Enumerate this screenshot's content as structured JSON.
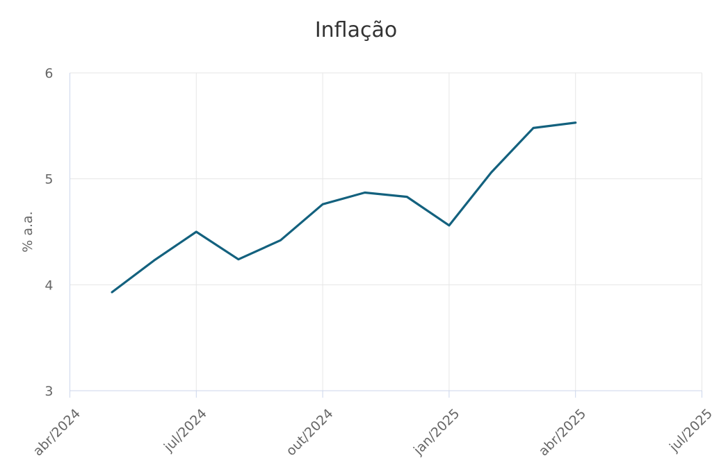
{
  "page": {
    "title": "Inflação"
  },
  "chart_data": {
    "type": "line",
    "title": "Inflação",
    "xlabel": "",
    "ylabel": "% a.a.",
    "grid": true,
    "legend": "none",
    "x_axis": {
      "tick_labels": [
        "abr/2024",
        "jul/2024",
        "out/2024",
        "jan/2025",
        "abr/2025",
        "jul/2025"
      ],
      "tick_indices": [
        0,
        3,
        6,
        9,
        12,
        15
      ],
      "total_points": 16,
      "label_rotation_deg": -45
    },
    "y_axis": {
      "range": [
        3,
        6
      ],
      "ticks": [
        3,
        4,
        5,
        6
      ],
      "tick_labels": [
        "3",
        "4",
        "5",
        "6"
      ]
    },
    "series": [
      {
        "name": "Inflação",
        "color": "#13617e",
        "start_index": 1,
        "x": [
          "mai/2024",
          "jun/2024",
          "jul/2024",
          "ago/2024",
          "set/2024",
          "out/2024",
          "nov/2024",
          "dez/2024",
          "jan/2025",
          "fev/2025",
          "mar/2025",
          "abr/2025"
        ],
        "values": [
          3.93,
          4.23,
          4.5,
          4.24,
          4.42,
          4.76,
          4.87,
          4.83,
          4.56,
          5.06,
          5.48,
          5.53
        ]
      }
    ],
    "colors": {
      "title": "#333333",
      "labels": "#666666",
      "grid": "#e6e6e6",
      "axis": "#ccd6eb",
      "background": "#ffffff"
    }
  }
}
